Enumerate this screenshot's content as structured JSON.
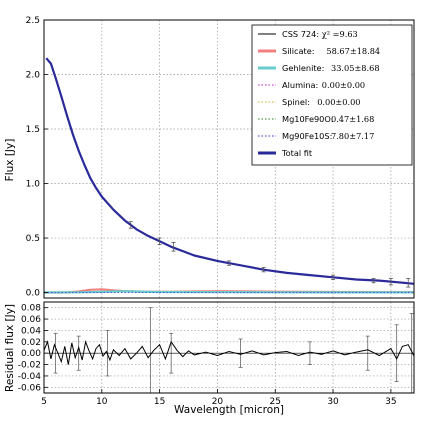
{
  "chart_data": [
    {
      "type": "line",
      "panel": "main",
      "ylabel": "Flux [Jy]",
      "xlim": [
        5,
        37
      ],
      "ylim": [
        -0.05,
        2.5
      ],
      "yticks": [
        "0.0",
        "0.5",
        "1.0",
        "1.5",
        "2.0",
        "2.5"
      ],
      "grid": true,
      "legend_position": "top-right",
      "legend": [
        {
          "name": "CSS 724:",
          "math": "χ² =9.63",
          "color": "#000000",
          "style": "solid"
        },
        {
          "name": "Silicate:",
          "math": "58.67±18.84",
          "color": "#f08080",
          "style": "thick"
        },
        {
          "name": "Gehlenite:",
          "math": "33.05±8.68",
          "color": "#66cccc",
          "style": "thick"
        },
        {
          "name": "Alumina:",
          "math": "0.00±0.00",
          "color": "#dd44dd",
          "style": "dotted"
        },
        {
          "name": "Spinel:",
          "math": "0.00±0.00",
          "color": "#d4c24a",
          "style": "dotted"
        },
        {
          "name": "Mg10Fe90O:",
          "math": "0.47±1.68",
          "color": "#4a9a4a",
          "style": "dotted"
        },
        {
          "name": "Mg90Fe10S:",
          "math": "7.80±7.17",
          "color": "#5555dd",
          "style": "dotted"
        },
        {
          "name": "Total fit",
          "math": "",
          "color": "#2a2a9a",
          "style": "thick"
        }
      ],
      "series": [
        {
          "name": "CSS 724:",
          "x": [
            5.2,
            5.6,
            6,
            6.5,
            7,
            7.5,
            8,
            8.5,
            9,
            9.5,
            10,
            11,
            12,
            13,
            14,
            15,
            16,
            17,
            18,
            20,
            22,
            24,
            26,
            28,
            30,
            32,
            34,
            36,
            37
          ],
          "y": [
            2.15,
            2.1,
            1.97,
            1.8,
            1.62,
            1.45,
            1.3,
            1.17,
            1.05,
            0.96,
            0.88,
            0.76,
            0.66,
            0.58,
            0.52,
            0.47,
            0.42,
            0.38,
            0.34,
            0.29,
            0.25,
            0.21,
            0.18,
            0.16,
            0.14,
            0.12,
            0.11,
            0.09,
            0.08
          ]
        },
        {
          "name": "Total fit",
          "x": [
            5.2,
            5.6,
            6,
            6.5,
            7,
            7.5,
            8,
            8.5,
            9,
            9.5,
            10,
            11,
            12,
            13,
            14,
            15,
            16,
            17,
            18,
            20,
            22,
            24,
            26,
            28,
            30,
            32,
            34,
            36,
            37
          ],
          "y": [
            2.15,
            2.1,
            1.97,
            1.8,
            1.62,
            1.45,
            1.3,
            1.17,
            1.05,
            0.96,
            0.88,
            0.76,
            0.66,
            0.58,
            0.52,
            0.47,
            0.42,
            0.38,
            0.34,
            0.29,
            0.25,
            0.21,
            0.18,
            0.16,
            0.14,
            0.12,
            0.11,
            0.09,
            0.08
          ]
        },
        {
          "name": "Silicate:",
          "x": [
            5,
            7,
            8,
            9,
            10,
            11,
            12,
            14,
            16,
            18,
            20,
            25,
            30,
            37
          ],
          "y": [
            0.0,
            0.0,
            0.01,
            0.025,
            0.03,
            0.02,
            0.012,
            0.008,
            0.006,
            0.01,
            0.012,
            0.008,
            0.005,
            0.003
          ]
        },
        {
          "name": "Gehlenite:",
          "x": [
            5,
            8,
            10,
            11,
            12,
            13,
            15,
            20,
            25,
            30,
            37
          ],
          "y": [
            0.0,
            0.002,
            0.006,
            0.01,
            0.012,
            0.009,
            0.005,
            0.003,
            0.002,
            0.001,
            0.001
          ]
        }
      ],
      "error_bars": [
        {
          "x": 12.5,
          "y": 0.62,
          "err": 0.03
        },
        {
          "x": 15.0,
          "y": 0.47,
          "err": 0.03
        },
        {
          "x": 16.2,
          "y": 0.42,
          "err": 0.04
        },
        {
          "x": 21.0,
          "y": 0.27,
          "err": 0.02
        },
        {
          "x": 24.0,
          "y": 0.21,
          "err": 0.02
        },
        {
          "x": 30.0,
          "y": 0.14,
          "err": 0.02
        },
        {
          "x": 33.5,
          "y": 0.11,
          "err": 0.02
        },
        {
          "x": 35.0,
          "y": 0.1,
          "err": 0.03
        },
        {
          "x": 36.5,
          "y": 0.09,
          "err": 0.04
        }
      ]
    },
    {
      "type": "line",
      "panel": "residual",
      "xlabel": "Wavelength [micron]",
      "ylabel": "Residual flux [Jy]",
      "xlim": [
        5,
        37
      ],
      "ylim": [
        -0.07,
        0.09
      ],
      "xticks": [
        "5",
        "10",
        "15",
        "20",
        "25",
        "30",
        "35"
      ],
      "yticks": [
        "0.08",
        "0.06",
        "0.04",
        "0.02",
        "0.00",
        "-0.02",
        "-0.04",
        "-0.06"
      ],
      "grid": true,
      "x": [
        5.0,
        5.3,
        5.6,
        5.9,
        6.2,
        6.5,
        6.8,
        7.1,
        7.4,
        7.7,
        8.0,
        8.3,
        8.6,
        8.9,
        9.2,
        9.5,
        9.8,
        10.1,
        10.4,
        10.7,
        11.0,
        11.5,
        12.0,
        12.5,
        13.0,
        13.5,
        14.0,
        14.5,
        15.0,
        15.5,
        16.0,
        16.5,
        17.0,
        17.5,
        18.0,
        19.0,
        20.0,
        21.0,
        22.0,
        23.0,
        24.0,
        25.0,
        26.0,
        27.0,
        28.0,
        29.0,
        30.0,
        31.0,
        32.0,
        33.0,
        34.0,
        35.0,
        35.5,
        36.0,
        36.5,
        37.0
      ],
      "y": [
        0.005,
        0.02,
        -0.01,
        0.015,
        0.0,
        -0.015,
        0.012,
        -0.02,
        0.018,
        -0.008,
        0.01,
        -0.012,
        0.02,
        0.004,
        -0.01,
        0.008,
        0.015,
        -0.005,
        0.003,
        -0.012,
        0.006,
        -0.004,
        0.008,
        -0.01,
        0.0,
        0.012,
        -0.008,
        0.005,
        0.015,
        -0.01,
        0.02,
        0.005,
        -0.006,
        0.004,
        -0.003,
        0.002,
        -0.004,
        0.003,
        -0.002,
        0.004,
        -0.003,
        0.001,
        0.003,
        -0.004,
        0.002,
        -0.002,
        0.004,
        -0.003,
        0.002,
        0.006,
        -0.004,
        0.008,
        -0.01,
        0.012,
        0.015,
        -0.005
      ],
      "error_bars": [
        {
          "x": 6.0,
          "y": 0.0,
          "err": 0.035
        },
        {
          "x": 8.0,
          "y": 0.0,
          "err": 0.03
        },
        {
          "x": 10.5,
          "y": 0.0,
          "err": 0.04
        },
        {
          "x": 14.2,
          "y": -0.02,
          "err": 0.1
        },
        {
          "x": 16.0,
          "y": 0.0,
          "err": 0.035
        },
        {
          "x": 22.0,
          "y": 0.0,
          "err": 0.025
        },
        {
          "x": 28.0,
          "y": 0.0,
          "err": 0.02
        },
        {
          "x": 33.0,
          "y": 0.0,
          "err": 0.03
        },
        {
          "x": 35.5,
          "y": 0.0,
          "err": 0.05
        },
        {
          "x": 36.8,
          "y": 0.0,
          "err": 0.07
        }
      ]
    }
  ]
}
